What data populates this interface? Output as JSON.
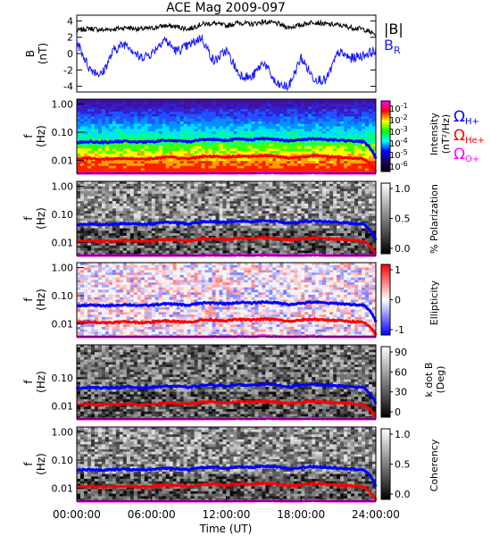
{
  "title": "ACE Mag 2009-097",
  "colors": {
    "B_total": "#000000",
    "B_R": "#1a1aff",
    "omega_H": "#0000ff",
    "omega_He": "#ff0000",
    "omega_O": "#ff00ff"
  },
  "chart_data": {
    "type": "spectrogram-stack",
    "x_axis": {
      "label": "Time (UT)",
      "range_hours": [
        0,
        24
      ],
      "tick_labels": [
        "00:00:00",
        "06:00:00",
        "12:00:00",
        "18:00:00",
        "24:00:00"
      ],
      "tick_hours": [
        0,
        6,
        12,
        18,
        24
      ]
    },
    "line_panel": {
      "ylabel": "B",
      "yunit": "(nT)",
      "ylim": [
        -4.7,
        4.7
      ],
      "yticks": [
        4,
        2,
        0,
        -2,
        -4
      ],
      "legend": {
        "total_label": "|B|",
        "radial_base": "B",
        "radial_sub": "R"
      },
      "series": [
        {
          "name": "|B|",
          "hours": [
            0,
            1,
            2,
            3,
            4,
            5,
            6,
            7,
            8,
            9,
            10,
            11,
            12,
            13,
            14,
            15,
            16,
            17,
            18,
            19,
            20,
            21,
            22,
            23,
            24
          ],
          "values": [
            2.8,
            3.1,
            2.9,
            3.0,
            3.2,
            3.0,
            3.1,
            3.4,
            3.3,
            3.0,
            3.6,
            3.7,
            3.4,
            3.8,
            3.6,
            3.9,
            3.7,
            3.2,
            3.5,
            3.9,
            3.6,
            3.5,
            3.2,
            3.0,
            2.3
          ]
        },
        {
          "name": "B_R",
          "hours": [
            0,
            1,
            2,
            3,
            4,
            5,
            6,
            7,
            8,
            9,
            10,
            11,
            12,
            13,
            14,
            15,
            16,
            17,
            18,
            19,
            20,
            21,
            22,
            23,
            24
          ],
          "values": [
            1.5,
            -1.8,
            -2.6,
            0.5,
            1.3,
            -0.5,
            0.0,
            1.8,
            0.3,
            1.0,
            2.0,
            -1.0,
            0.4,
            -2.5,
            -3.0,
            -1.0,
            -3.8,
            -4.1,
            -0.5,
            -3.0,
            -3.3,
            0.2,
            -0.6,
            -0.2,
            0.4
          ]
        }
      ]
    },
    "spectrogram_panels": [
      {
        "ylabel": "f",
        "yunit": "(Hz)",
        "ytick_labels": [
          "1.00",
          "0.10",
          "0.01"
        ],
        "colorbar": {
          "label": "Intensity",
          "unit": "(nT²/Hz)",
          "scale": "log",
          "tick_bases": [
            "10",
            "10",
            "10",
            "10",
            "10",
            "10"
          ],
          "tick_exps": [
            "-1",
            "-2",
            "-3",
            "-4",
            "-5",
            "-6"
          ]
        },
        "gyro_legend": {
          "symbol": "Ω",
          "H": "H+",
          "He": "He+",
          "O": "O+"
        }
      },
      {
        "ylabel": "f",
        "yunit": "(Hz)",
        "ytick_labels": [
          "1.00",
          "0.10",
          "0.01"
        ],
        "colorbar": {
          "label": "% Polarization",
          "ticks": [
            "1.0",
            "0.5",
            "0.0"
          ]
        }
      },
      {
        "ylabel": "f",
        "yunit": "(Hz)",
        "ytick_labels": [
          "1.00",
          "0.10",
          "0.01"
        ],
        "colorbar": {
          "label": "Ellipticity",
          "ticks": [
            "1",
            "0",
            "-1"
          ]
        }
      },
      {
        "ylabel": "f",
        "yunit": "(Hz)",
        "ytick_labels": [
          "0.10",
          "0.01"
        ],
        "colorbar": {
          "label": "k dot B",
          "unit": "(Deg)",
          "ticks": [
            "90",
            "60",
            "30",
            "0"
          ]
        }
      },
      {
        "ylabel": "f",
        "yunit": "(Hz)",
        "ytick_labels": [
          "1.00",
          "0.10",
          "0.01"
        ],
        "colorbar": {
          "label": "Coherency",
          "ticks": [
            "1.0",
            "0.5",
            "0.0"
          ]
        }
      }
    ],
    "gyrofrequency_hz": {
      "hours": [
        0,
        1,
        2,
        3,
        4,
        5,
        6,
        7,
        8,
        9,
        10,
        11,
        12,
        13,
        14,
        15,
        16,
        17,
        18,
        19,
        20,
        21,
        22,
        23,
        24
      ],
      "H+": [
        0.043,
        0.047,
        0.044,
        0.046,
        0.048,
        0.045,
        0.046,
        0.052,
        0.05,
        0.046,
        0.055,
        0.056,
        0.052,
        0.058,
        0.055,
        0.06,
        0.057,
        0.049,
        0.054,
        0.06,
        0.055,
        0.053,
        0.049,
        0.046,
        0.012
      ],
      "He+": [
        0.011,
        0.012,
        0.011,
        0.0115,
        0.012,
        0.0112,
        0.0115,
        0.013,
        0.0125,
        0.0115,
        0.0138,
        0.014,
        0.013,
        0.0145,
        0.0138,
        0.015,
        0.0142,
        0.0122,
        0.0135,
        0.015,
        0.0138,
        0.0132,
        0.0122,
        0.0115,
        0.004
      ],
      "O+": [
        0.0027,
        0.0029,
        0.0028,
        0.0029,
        0.003,
        0.0028,
        0.0029,
        0.0033,
        0.0031,
        0.0029,
        0.0034,
        0.0035,
        0.0033,
        0.0036,
        0.0034,
        0.0037,
        0.0036,
        0.0031,
        0.0034,
        0.0037,
        0.0034,
        0.0033,
        0.0031,
        0.0029,
        0.0025
      ]
    }
  }
}
